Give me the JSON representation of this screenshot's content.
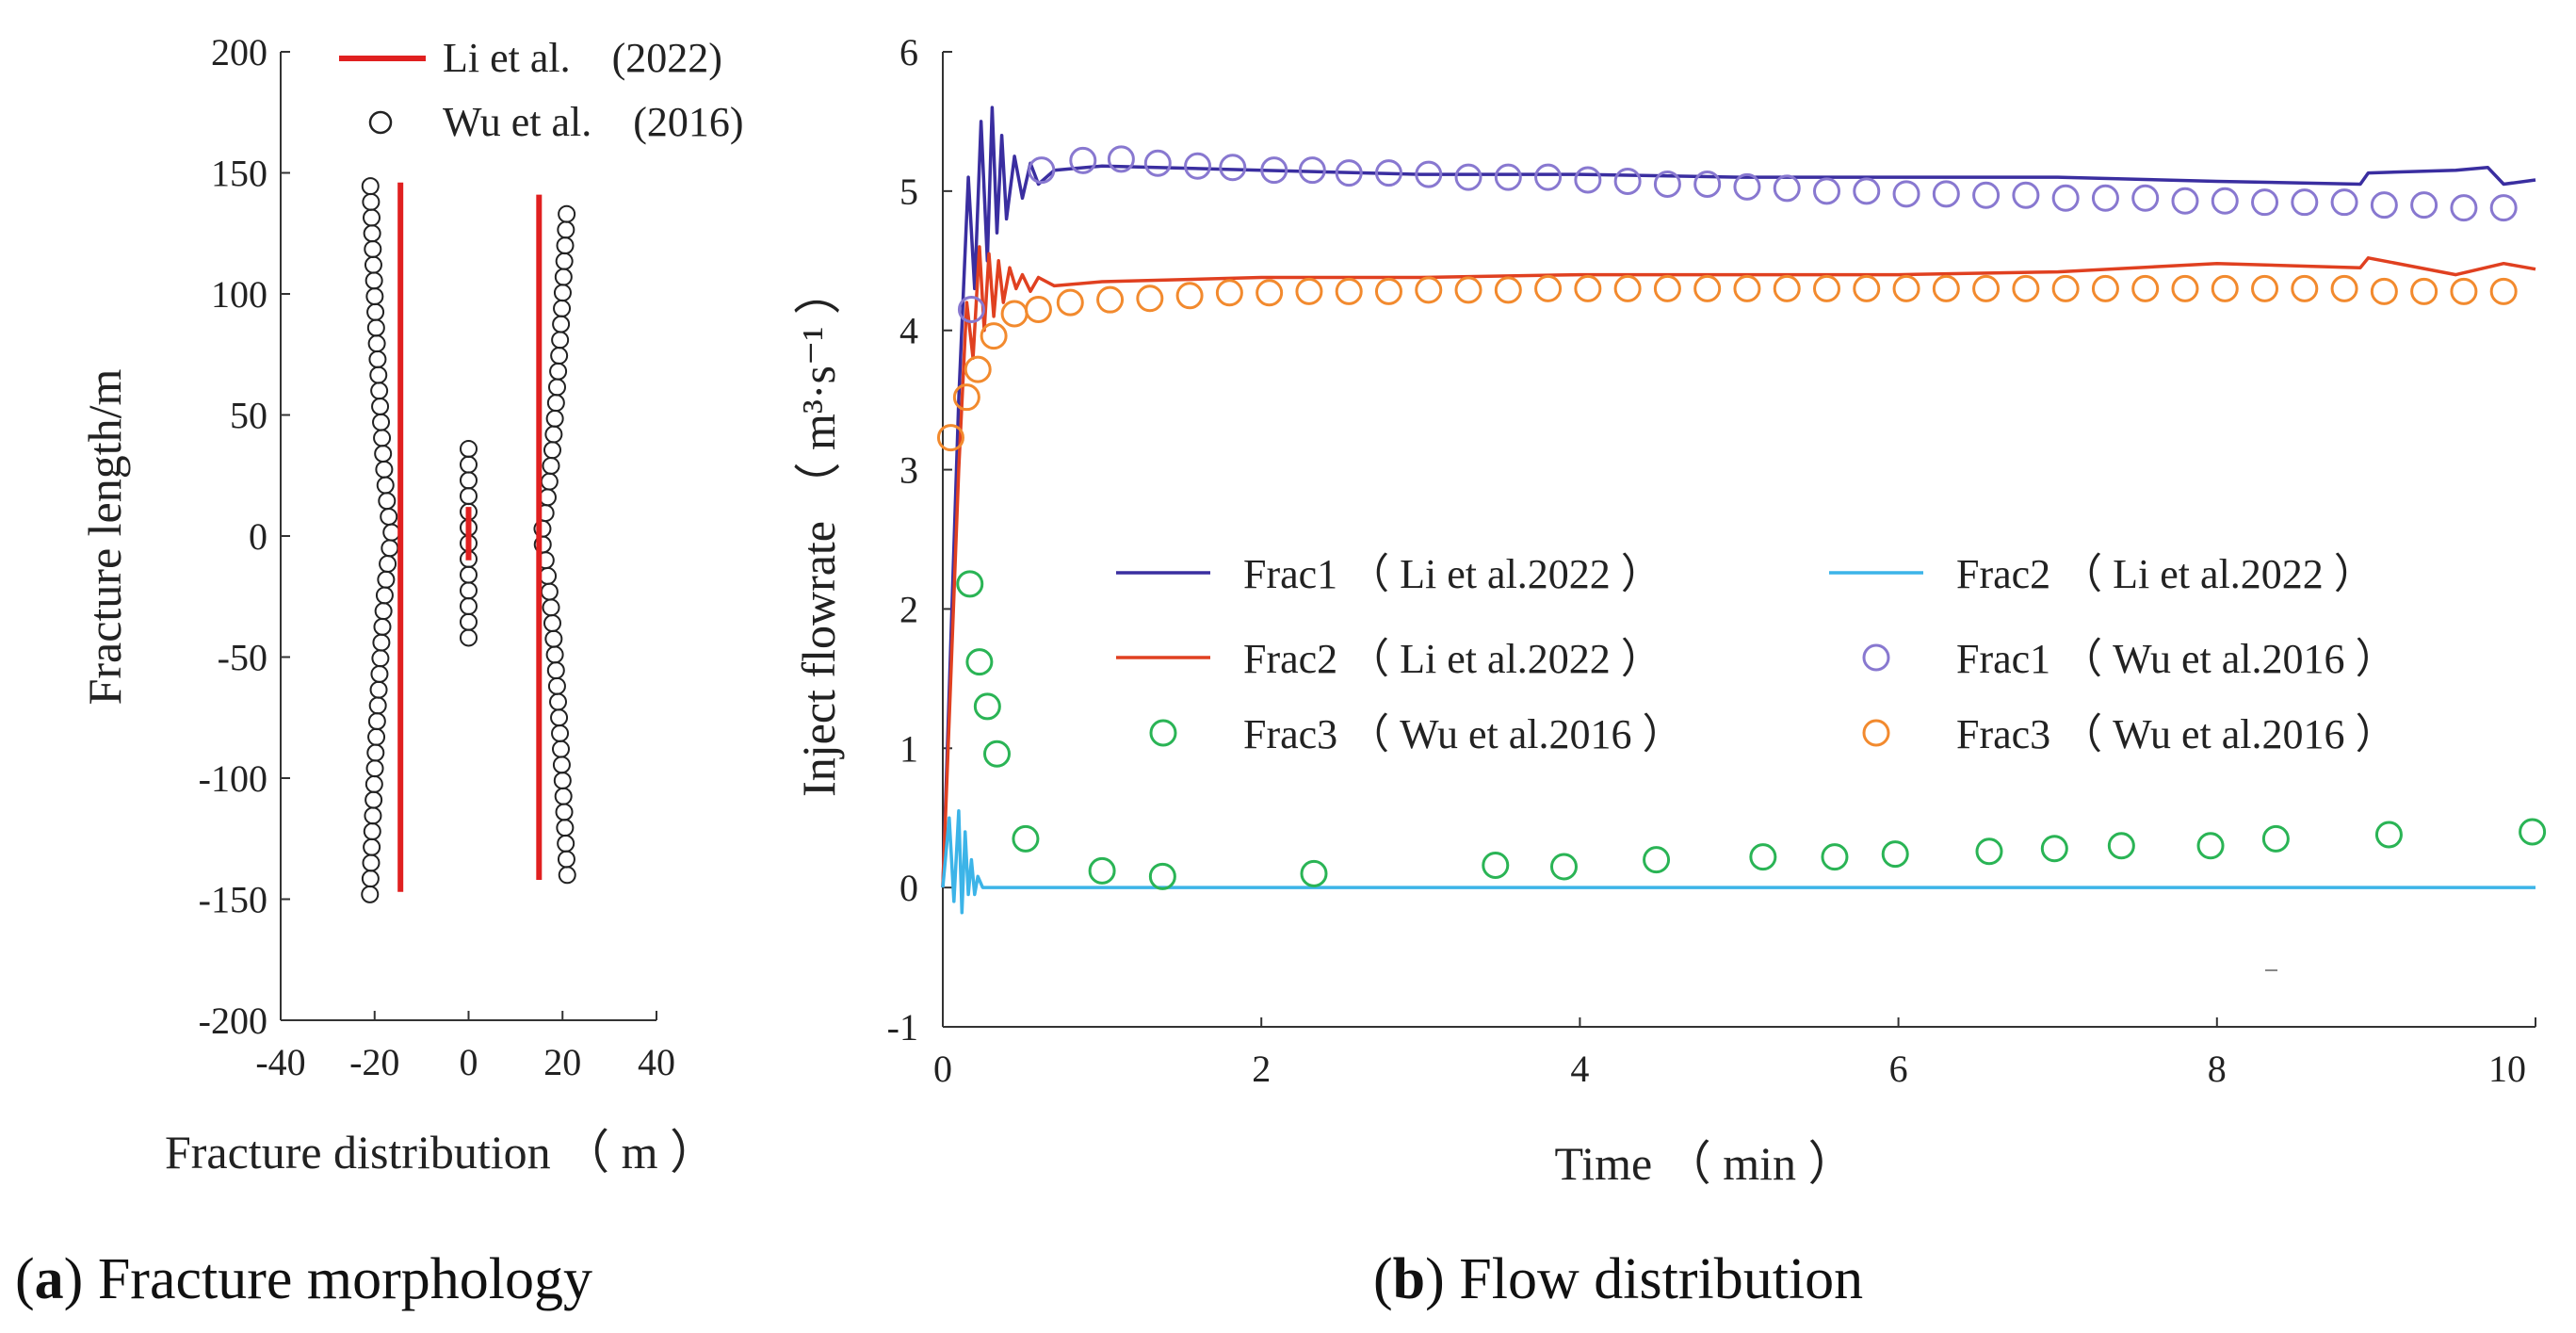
{
  "chart_data": [
    {
      "type": "scatter",
      "caption_letter": "a",
      "caption_text": " Fracture morphology",
      "xlabel": "Fracture distribution （ m ）",
      "ylabel": "Fracture length/m",
      "xlim": [
        -40,
        40
      ],
      "ylim": [
        -200,
        200
      ],
      "x_ticks": [
        -40,
        -20,
        0,
        20,
        40
      ],
      "y_ticks": [
        -200,
        -150,
        -100,
        -50,
        0,
        50,
        100,
        150,
        200
      ],
      "legend": [
        {
          "label": "Li et al.　(2022)",
          "style": "line",
          "color": "#e02020"
        },
        {
          "label": "Wu et al.　(2016)",
          "style": "circle",
          "color": "#222222"
        }
      ],
      "li_lines": [
        {
          "x": -14.5,
          "y_start": -147,
          "y_end": 146
        },
        {
          "x": 0,
          "y_start": -10,
          "y_end": 12
        },
        {
          "x": 15,
          "y_start": -142,
          "y_end": 141
        }
      ],
      "wu_fractures": [
        {
          "center_x": -16,
          "tip_x": -21,
          "y_min": -148,
          "y_max": 150
        },
        {
          "center_x": 0,
          "tip_x": 0,
          "y_min": -42,
          "y_max": 38
        },
        {
          "center_x": 15,
          "tip_x": 21,
          "y_min": -140,
          "y_max": 138
        }
      ]
    },
    {
      "type": "line",
      "caption_letter": "b",
      "caption_text": " Flow distribution",
      "xlabel": "Time （ min ）",
      "ylabel": "Inject flowrate （ m³·s⁻¹ ）",
      "xlim": [
        0,
        10
      ],
      "ylim": [
        -1,
        6
      ],
      "x_ticks": [
        0,
        2,
        4,
        6,
        8,
        10
      ],
      "y_ticks": [
        -1,
        0,
        1,
        2,
        3,
        4,
        5,
        6
      ],
      "series": [
        {
          "name": "Frac1 （ Li et al.2022 ）",
          "style": "line",
          "color": "#3a2ea0",
          "x": [
            0,
            0.1,
            0.16,
            0.2,
            0.24,
            0.28,
            0.31,
            0.34,
            0.37,
            0.4,
            0.45,
            0.5,
            0.55,
            0.6,
            0.7,
            1,
            2,
            3,
            4,
            5,
            6,
            7,
            8,
            8.9,
            8.95,
            9.5,
            9.7,
            9.8,
            10
          ],
          "y": [
            0,
            3.5,
            5.1,
            4.3,
            5.5,
            4.5,
            5.6,
            4.7,
            5.4,
            4.8,
            5.25,
            4.95,
            5.2,
            5.05,
            5.15,
            5.18,
            5.15,
            5.12,
            5.12,
            5.1,
            5.1,
            5.1,
            5.07,
            5.05,
            5.13,
            5.15,
            5.17,
            5.05,
            5.08
          ]
        },
        {
          "name": "Frac2 （ Li et al.2022 ）",
          "style": "line",
          "color": "#e04020",
          "x": [
            0,
            0.1,
            0.15,
            0.19,
            0.23,
            0.26,
            0.29,
            0.32,
            0.35,
            0.38,
            0.42,
            0.46,
            0.5,
            0.55,
            0.6,
            0.7,
            1,
            2,
            3,
            4,
            5,
            6,
            7,
            8,
            8.9,
            8.95,
            9.5,
            9.8,
            10
          ],
          "y": [
            0,
            3.0,
            4.2,
            3.8,
            4.6,
            4.0,
            4.55,
            4.1,
            4.5,
            4.2,
            4.45,
            4.3,
            4.4,
            4.28,
            4.38,
            4.32,
            4.35,
            4.38,
            4.38,
            4.4,
            4.4,
            4.4,
            4.42,
            4.48,
            4.45,
            4.52,
            4.4,
            4.48,
            4.44
          ]
        },
        {
          "name": "Frac2 （ Li et al.2022 ）",
          "style": "line",
          "color": "#3cb4e8",
          "x": [
            0,
            0.04,
            0.07,
            0.1,
            0.12,
            0.14,
            0.16,
            0.18,
            0.2,
            0.22,
            0.25,
            0.3,
            1,
            5,
            10
          ],
          "y": [
            0,
            0.5,
            -0.1,
            0.55,
            -0.18,
            0.4,
            -0.05,
            0.2,
            -0.05,
            0.08,
            0.0,
            0.0,
            0.0,
            0.0,
            0.0
          ]
        },
        {
          "name": "Frac1 （ Wu et al.2016 ）",
          "style": "circle",
          "color": "#8878d0",
          "x": [
            0.18,
            0.62,
            0.88,
            1.12,
            1.35,
            1.6,
            1.82,
            2.08,
            2.32,
            2.55,
            2.8,
            3.05,
            3.3,
            3.55,
            3.8,
            4.05,
            4.3,
            4.55,
            4.8,
            5.05,
            5.3,
            5.55,
            5.8,
            6.05,
            6.3,
            6.55,
            6.8,
            7.05,
            7.3,
            7.55,
            7.8,
            8.05,
            8.3,
            8.55,
            8.8,
            9.05,
            9.3,
            9.55,
            9.8
          ],
          "y": [
            4.15,
            5.15,
            5.22,
            5.23,
            5.2,
            5.18,
            5.17,
            5.15,
            5.15,
            5.13,
            5.13,
            5.12,
            5.1,
            5.1,
            5.1,
            5.08,
            5.07,
            5.05,
            5.05,
            5.03,
            5.02,
            5.0,
            5.0,
            4.98,
            4.98,
            4.97,
            4.97,
            4.95,
            4.95,
            4.95,
            4.93,
            4.93,
            4.92,
            4.92,
            4.92,
            4.9,
            4.9,
            4.88,
            4.88
          ]
        },
        {
          "name": "Frac3 （ Wu et al.2016 ）",
          "style": "circle",
          "color": "#f28a2e",
          "x": [
            0.05,
            0.15,
            0.22,
            0.32,
            0.45,
            0.6,
            0.8,
            1.05,
            1.3,
            1.55,
            1.8,
            2.05,
            2.3,
            2.55,
            2.8,
            3.05,
            3.3,
            3.55,
            3.8,
            4.05,
            4.3,
            4.55,
            4.8,
            5.05,
            5.3,
            5.55,
            5.8,
            6.05,
            6.3,
            6.55,
            6.8,
            7.05,
            7.3,
            7.55,
            7.8,
            8.05,
            8.3,
            8.55,
            8.8,
            9.05,
            9.3,
            9.55,
            9.8
          ],
          "y": [
            3.23,
            3.52,
            3.72,
            3.96,
            4.12,
            4.15,
            4.2,
            4.22,
            4.23,
            4.25,
            4.27,
            4.27,
            4.28,
            4.28,
            4.28,
            4.29,
            4.29,
            4.29,
            4.3,
            4.3,
            4.3,
            4.3,
            4.3,
            4.3,
            4.3,
            4.3,
            4.3,
            4.3,
            4.3,
            4.3,
            4.3,
            4.3,
            4.3,
            4.3,
            4.3,
            4.3,
            4.3,
            4.3,
            4.3,
            4.28,
            4.28,
            4.28,
            4.28
          ]
        },
        {
          "name": "Frac3 （ Wu et al.2016 ）",
          "style": "circle",
          "color": "#2ab455",
          "x": [
            0.17,
            0.23,
            0.28,
            0.34,
            0.52,
            1.0,
            1.38,
            2.33,
            3.47,
            3.9,
            4.48,
            5.15,
            5.6,
            5.98,
            6.57,
            6.98,
            7.4,
            7.96,
            8.37,
            9.08,
            9.98
          ],
          "y": [
            2.18,
            1.62,
            1.3,
            0.96,
            0.35,
            0.12,
            0.08,
            0.1,
            0.16,
            0.15,
            0.2,
            0.22,
            0.22,
            0.24,
            0.26,
            0.28,
            0.3,
            0.3,
            0.35,
            0.38,
            0.4
          ]
        }
      ],
      "legend_order": [
        0,
        2,
        1,
        3,
        5,
        4
      ]
    }
  ],
  "caption_open": "(",
  "caption_close": ")"
}
